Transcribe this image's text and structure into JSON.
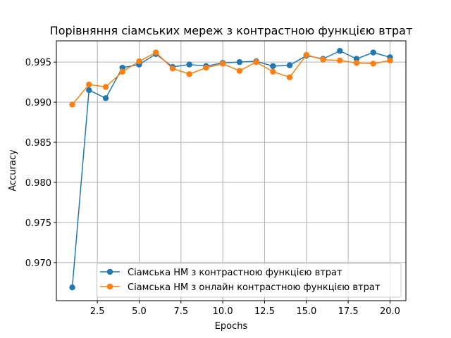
{
  "chart_data": {
    "type": "line",
    "title": "Порівняння сіамських мереж з контрастною функцією втрат",
    "xlabel": "Epochs",
    "ylabel": "Accuracy",
    "xlim": [
      0.05,
      20.95
    ],
    "ylim": [
      0.96525,
      0.99765
    ],
    "grid": true,
    "legend_position": "bottom-right",
    "xticks": [
      2.5,
      5.0,
      7.5,
      10.0,
      12.5,
      15.0,
      17.5,
      20.0
    ],
    "xtick_labels": [
      "2.5",
      "5.0",
      "7.5",
      "10.0",
      "12.5",
      "15.0",
      "17.5",
      "20.0"
    ],
    "yticks": [
      0.97,
      0.975,
      0.98,
      0.985,
      0.99,
      0.995
    ],
    "ytick_labels": [
      "0.970",
      "0.975",
      "0.980",
      "0.985",
      "0.990",
      "0.995"
    ],
    "x": [
      1,
      2,
      3,
      4,
      5,
      6,
      7,
      8,
      9,
      10,
      11,
      12,
      13,
      14,
      15,
      16,
      17,
      18,
      19,
      20
    ],
    "series": [
      {
        "name": "Сіамська НМ з контрастною функцією втрат",
        "color": "#1f77b4",
        "values": [
          0.9669,
          0.9915,
          0.9905,
          0.9943,
          0.9947,
          0.996,
          0.9944,
          0.9947,
          0.9945,
          0.9949,
          0.995,
          0.9951,
          0.9945,
          0.9946,
          0.9958,
          0.9954,
          0.9964,
          0.9954,
          0.9962,
          0.9956
        ]
      },
      {
        "name": "Сіамська НМ з онлайн контрастною функцією втрат",
        "color": "#ff7f0e",
        "values": [
          0.9897,
          0.9922,
          0.9919,
          0.9938,
          0.9951,
          0.9962,
          0.9942,
          0.9935,
          0.9943,
          0.9948,
          0.9939,
          0.995,
          0.9938,
          0.9931,
          0.9959,
          0.9953,
          0.9952,
          0.9949,
          0.9948,
          0.9952
        ]
      }
    ]
  }
}
